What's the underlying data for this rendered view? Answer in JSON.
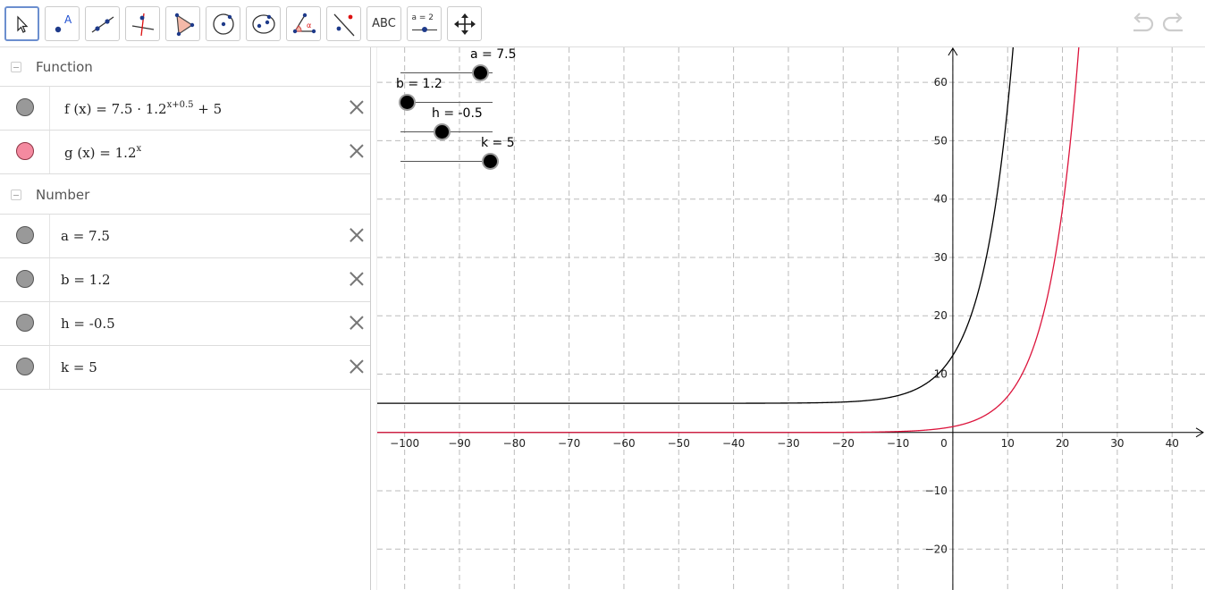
{
  "toolbar": {
    "tools": [
      {
        "name": "move-tool",
        "icon": "cursor-arrow-icon"
      },
      {
        "name": "point-tool",
        "icon": "point-icon"
      },
      {
        "name": "line-tool",
        "icon": "line-icon"
      },
      {
        "name": "perpendicular-tool",
        "icon": "perpendicular-line-icon"
      },
      {
        "name": "polygon-tool",
        "icon": "polygon-icon"
      },
      {
        "name": "circle-tool",
        "icon": "circle-icon"
      },
      {
        "name": "conic-tool",
        "icon": "ellipse-icon"
      },
      {
        "name": "angle-tool",
        "icon": "angle-icon"
      },
      {
        "name": "reflect-tool",
        "icon": "reflect-icon"
      },
      {
        "name": "text-tool",
        "label": "ABC"
      },
      {
        "name": "slider-tool",
        "label": "a = 2"
      },
      {
        "name": "move-view-tool",
        "icon": "move-arrows-icon"
      }
    ],
    "undo_icon": "undo-icon",
    "redo_icon": "redo-icon"
  },
  "algebra": {
    "function_group": {
      "label": "Function"
    },
    "functions": [
      {
        "name": "f",
        "prefix": "f (x)  =  7.5 · 1.2",
        "exponent": "x+0.5",
        "suffix": " + 5",
        "color": "#000000"
      },
      {
        "name": "g",
        "prefix": "g (x)  =  1.2",
        "exponent": "x",
        "suffix": "",
        "color": "#dc143c"
      }
    ],
    "number_group": {
      "label": "Number"
    },
    "numbers": [
      {
        "text": "a  =  7.5"
      },
      {
        "text": "b  =  1.2"
      },
      {
        "text": "h  =  -0.5"
      },
      {
        "text": "k  =  5"
      }
    ]
  },
  "sliders": [
    {
      "label": "a = 7.5",
      "fraction": 0.87
    },
    {
      "label": "b = 1.2",
      "fraction": 0.07
    },
    {
      "label": "h = -0.5",
      "fraction": 0.45
    },
    {
      "label": "k = 5",
      "fraction": 0.98
    }
  ],
  "chart_data": {
    "type": "line",
    "xlim": [
      -105,
      46
    ],
    "ylim": [
      -27,
      66
    ],
    "x_ticks": [
      -100,
      -90,
      -80,
      -70,
      -60,
      -50,
      -40,
      -30,
      -20,
      -10,
      0,
      10,
      20,
      30,
      40
    ],
    "y_ticks": [
      -20,
      -10,
      10,
      20,
      30,
      40,
      50,
      60
    ],
    "grid": true,
    "series": [
      {
        "name": "f",
        "formula": "7.5*1.2^(x+0.5)+5",
        "color": "#000000"
      },
      {
        "name": "g",
        "formula": "1.2^x",
        "color": "#dc143c"
      }
    ]
  }
}
